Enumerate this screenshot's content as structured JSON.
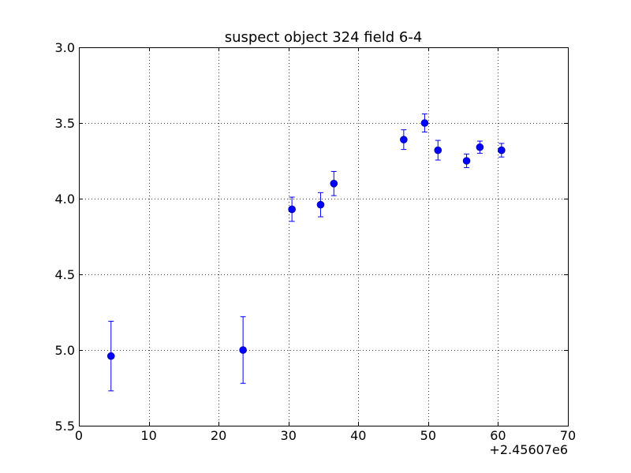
{
  "chart_data": {
    "type": "scatter",
    "title": "suspect object 324 field 6-4",
    "xlabel": "",
    "ylabel": "",
    "x_offset_label": "+2.45607e6",
    "xlim": [
      0,
      70
    ],
    "ylim": [
      3.0,
      5.5
    ],
    "y_inverted": true,
    "grid": true,
    "x_ticks": [
      0,
      10,
      20,
      30,
      40,
      50,
      60,
      70
    ],
    "x_tick_labels": [
      "0",
      "10",
      "20",
      "30",
      "40",
      "50",
      "60",
      "70"
    ],
    "y_ticks": [
      3.0,
      3.5,
      4.0,
      4.5,
      5.0,
      5.5
    ],
    "y_tick_labels": [
      "3.0",
      "3.5",
      "4.0",
      "4.5",
      "5.0",
      "5.5"
    ],
    "marker_color": "#0000ff",
    "series": [
      {
        "points": [
          {
            "x": 4.6,
            "y": 5.04,
            "yerr": 0.23
          },
          {
            "x": 23.5,
            "y": 5.0,
            "yerr": 0.22
          },
          {
            "x": 30.5,
            "y": 4.07,
            "yerr": 0.08
          },
          {
            "x": 34.6,
            "y": 4.04,
            "yerr": 0.08
          },
          {
            "x": 36.5,
            "y": 3.9,
            "yerr": 0.08
          },
          {
            "x": 46.5,
            "y": 3.61,
            "yerr": 0.065
          },
          {
            "x": 49.5,
            "y": 3.5,
            "yerr": 0.06
          },
          {
            "x": 51.4,
            "y": 3.68,
            "yerr": 0.065
          },
          {
            "x": 55.5,
            "y": 3.75,
            "yerr": 0.045
          },
          {
            "x": 57.4,
            "y": 3.66,
            "yerr": 0.04
          },
          {
            "x": 60.5,
            "y": 3.68,
            "yerr": 0.045
          }
        ]
      }
    ]
  }
}
